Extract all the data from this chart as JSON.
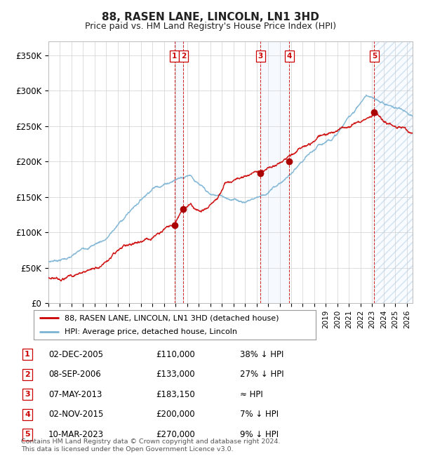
{
  "title": "88, RASEN LANE, LINCOLN, LN1 3HD",
  "subtitle": "Price paid vs. HM Land Registry's House Price Index (HPI)",
  "hpi_label": "HPI: Average price, detached house, Lincoln",
  "property_label": "88, RASEN LANE, LINCOLN, LN1 3HD (detached house)",
  "footer": "Contains HM Land Registry data © Crown copyright and database right 2024.\nThis data is licensed under the Open Government Licence v3.0.",
  "ylim": [
    0,
    370000
  ],
  "yticks": [
    0,
    50000,
    100000,
    150000,
    200000,
    250000,
    300000,
    350000
  ],
  "ytick_labels": [
    "£0",
    "£50K",
    "£100K",
    "£150K",
    "£200K",
    "£250K",
    "£300K",
    "£350K"
  ],
  "xlim_start": 1995.0,
  "xlim_end": 2026.5,
  "transactions": [
    {
      "num": 1,
      "date": "02-DEC-2005",
      "price": 110000,
      "hpi_diff": "38% ↓ HPI",
      "year": 2005.92
    },
    {
      "num": 2,
      "date": "08-SEP-2006",
      "price": 133000,
      "hpi_diff": "27% ↓ HPI",
      "year": 2006.68
    },
    {
      "num": 3,
      "date": "07-MAY-2013",
      "price": 183150,
      "hpi_diff": "≈ HPI",
      "year": 2013.35
    },
    {
      "num": 4,
      "date": "02-NOV-2015",
      "price": 200000,
      "hpi_diff": "7% ↓ HPI",
      "year": 2015.83
    },
    {
      "num": 5,
      "date": "10-MAR-2023",
      "price": 270000,
      "hpi_diff": "9% ↓ HPI",
      "year": 2023.19
    }
  ],
  "hpi_color": "#7ab3d4",
  "property_color": "#cc0000",
  "dot_color": "#aa0000",
  "vline_color": "#cc0000",
  "grid_color": "#cccccc",
  "title_color": "#222222",
  "shade_color_blue": "#ddeeff",
  "shade_color_hatch": "#ddeeff"
}
